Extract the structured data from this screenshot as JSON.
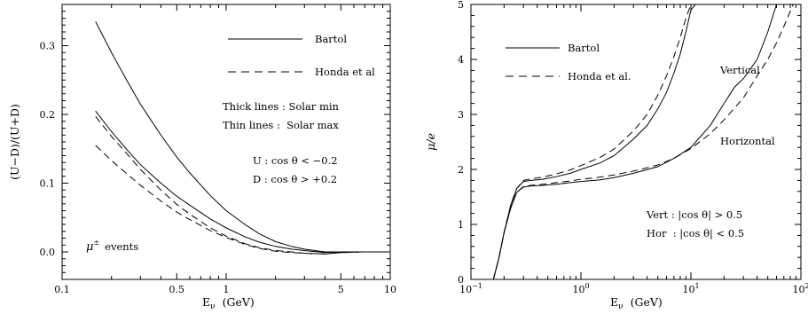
{
  "left_panel": {
    "xlabel": "E",
    "xlabel_sub": "ν",
    "xlabel_unit": "(GeV)",
    "ylabel": "(U−D)/(U+D)",
    "legend": [
      {
        "label": "Bartol",
        "style": "solid"
      },
      {
        "label": "Honda et al",
        "style": "dashed"
      }
    ],
    "notes": [
      "Thick lines : Solar min",
      "Thin lines :  Solar max"
    ],
    "updown_lines": [
      "U : cos θ < −0.2",
      "D : cos θ > +0.2"
    ],
    "events_label_symbol": "μ",
    "events_label_sup": "±",
    "events_label_text": "events",
    "xticks": [
      {
        "v": 0.1,
        "label": "0.1"
      },
      {
        "v": 0.5,
        "label": "0.5"
      },
      {
        "v": 1,
        "label": "1"
      },
      {
        "v": 5,
        "label": "5"
      },
      {
        "v": 10,
        "label": "10"
      }
    ],
    "yticks": [
      {
        "v": 0.0,
        "label": "0.0"
      },
      {
        "v": 0.1,
        "label": "0.1"
      },
      {
        "v": 0.2,
        "label": "0.2"
      },
      {
        "v": 0.3,
        "label": "0.3"
      }
    ]
  },
  "right_panel": {
    "xlabel": "E",
    "xlabel_sub": "ν",
    "xlabel_unit": "(GeV)",
    "ylabel": "μ/e",
    "legend": [
      {
        "label": "Bartol",
        "style": "solid"
      },
      {
        "label": "Honda et al.",
        "style": "dashed"
      }
    ],
    "curve_labels": [
      "Vertical",
      "Horizontal"
    ],
    "cut_lines": [
      "Vert : |cos θ| > 0.5",
      "Hor  : |cos θ| < 0.5"
    ],
    "xticks": [
      {
        "v": 0.1,
        "base": "10",
        "exp": "−1"
      },
      {
        "v": 1,
        "base": "10",
        "exp": "0"
      },
      {
        "v": 10,
        "base": "10",
        "exp": "1"
      },
      {
        "v": 100,
        "base": "10",
        "exp": "2"
      }
    ],
    "yticks": [
      {
        "v": 0,
        "label": "0"
      },
      {
        "v": 1,
        "label": "1"
      },
      {
        "v": 2,
        "label": "2"
      },
      {
        "v": 3,
        "label": "3"
      },
      {
        "v": 4,
        "label": "4"
      },
      {
        "v": 5,
        "label": "5"
      }
    ]
  },
  "chart_data": [
    {
      "type": "line",
      "xscale": "log",
      "xlim": [
        0.1,
        10
      ],
      "ylim": [
        -0.04,
        0.36
      ],
      "xlabel": "Eν (GeV)",
      "ylabel": "(U−D)/(U+D)",
      "legend_placement": "top-right",
      "series": [
        {
          "name": "Bartol",
          "style": "solid",
          "solar": "min",
          "x": [
            0.16,
            0.2,
            0.25,
            0.3,
            0.4,
            0.5,
            0.6,
            0.8,
            1.0,
            1.3,
            1.6,
            2.0,
            2.5,
            3.0,
            4.0,
            5.0,
            7.0,
            10.0
          ],
          "y": [
            0.335,
            0.29,
            0.248,
            0.215,
            0.17,
            0.138,
            0.115,
            0.082,
            0.06,
            0.04,
            0.026,
            0.015,
            0.008,
            0.004,
            0.0,
            0.0,
            0.0,
            0.0
          ]
        },
        {
          "name": "Bartol",
          "style": "solid",
          "solar": "max",
          "x": [
            0.16,
            0.2,
            0.25,
            0.3,
            0.4,
            0.5,
            0.6,
            0.8,
            1.0,
            1.3,
            1.6,
            2.0,
            2.5,
            3.0,
            4.0,
            5.0,
            7.0,
            10.0
          ],
          "y": [
            0.205,
            0.175,
            0.148,
            0.127,
            0.1,
            0.081,
            0.068,
            0.048,
            0.035,
            0.022,
            0.014,
            0.008,
            0.004,
            0.002,
            -0.001,
            0.0,
            0.0,
            0.0
          ]
        },
        {
          "name": "Honda et al",
          "style": "dashed",
          "solar": "min",
          "x": [
            0.16,
            0.2,
            0.25,
            0.3,
            0.4,
            0.5,
            0.6,
            0.8,
            1.0,
            1.3,
            1.6,
            2.0,
            2.5,
            3.0,
            4.0,
            5.0,
            7.0,
            10.0
          ],
          "y": [
            0.197,
            0.168,
            0.142,
            0.12,
            0.09,
            0.069,
            0.055,
            0.035,
            0.023,
            0.012,
            0.006,
            0.002,
            0.0,
            -0.002,
            -0.003,
            -0.001,
            0.0,
            0.0
          ]
        },
        {
          "name": "Honda et al",
          "style": "dashed",
          "solar": "max",
          "x": [
            0.16,
            0.2,
            0.25,
            0.3,
            0.4,
            0.5,
            0.6,
            0.8,
            1.0,
            1.3,
            1.6,
            2.0,
            2.5,
            3.0,
            4.0,
            5.0,
            7.0,
            10.0
          ],
          "y": [
            0.155,
            0.133,
            0.113,
            0.097,
            0.074,
            0.058,
            0.047,
            0.031,
            0.021,
            0.011,
            0.005,
            0.001,
            -0.001,
            -0.002,
            -0.003,
            -0.001,
            0.0,
            0.0
          ]
        }
      ]
    },
    {
      "type": "line",
      "xscale": "log",
      "xlim": [
        0.1,
        100
      ],
      "ylim": [
        0,
        5
      ],
      "xlabel": "Eν (GeV)",
      "ylabel": "μ/e",
      "legend_placement": "top-left",
      "series": [
        {
          "name": "Bartol",
          "style": "solid",
          "direction": "Vertical",
          "x": [
            0.16,
            0.18,
            0.2,
            0.23,
            0.26,
            0.3,
            0.35,
            0.45,
            0.6,
            0.8,
            1.0,
            1.5,
            2.0,
            3.0,
            4.0,
            5.0,
            6.0,
            7.0,
            8.0,
            9.0,
            10.0,
            11.0
          ],
          "y": [
            0.0,
            0.4,
            0.85,
            1.35,
            1.65,
            1.78,
            1.8,
            1.82,
            1.87,
            1.93,
            2.0,
            2.12,
            2.25,
            2.55,
            2.8,
            3.1,
            3.4,
            3.75,
            4.1,
            4.5,
            4.9,
            5.0
          ]
        },
        {
          "name": "Honda et al.",
          "style": "dashed",
          "direction": "Vertical",
          "x": [
            0.16,
            0.18,
            0.2,
            0.23,
            0.26,
            0.3,
            0.35,
            0.45,
            0.6,
            0.8,
            1.0,
            1.5,
            2.0,
            3.0,
            4.0,
            5.0,
            6.0,
            7.0,
            8.0,
            9.0,
            10.0
          ],
          "y": [
            0.0,
            0.4,
            0.85,
            1.35,
            1.65,
            1.8,
            1.83,
            1.86,
            1.92,
            1.99,
            2.07,
            2.22,
            2.37,
            2.7,
            3.0,
            3.35,
            3.7,
            4.05,
            4.4,
            4.75,
            5.0
          ]
        },
        {
          "name": "Bartol",
          "style": "solid",
          "direction": "Horizontal",
          "x": [
            0.16,
            0.18,
            0.2,
            0.23,
            0.26,
            0.3,
            0.35,
            0.45,
            0.6,
            0.8,
            1.0,
            1.5,
            2.0,
            3.0,
            5.0,
            7.0,
            10.0,
            15.0,
            20.0,
            25.0,
            30.0,
            40.0,
            50.0,
            60.0
          ],
          "y": [
            0.0,
            0.4,
            0.85,
            1.3,
            1.58,
            1.68,
            1.7,
            1.71,
            1.73,
            1.76,
            1.78,
            1.81,
            1.85,
            1.93,
            2.05,
            2.2,
            2.4,
            2.8,
            3.2,
            3.5,
            3.65,
            4.0,
            4.5,
            5.0
          ]
        },
        {
          "name": "Honda et al.",
          "style": "dashed",
          "direction": "Horizontal",
          "x": [
            0.16,
            0.18,
            0.2,
            0.23,
            0.26,
            0.3,
            0.35,
            0.45,
            0.6,
            0.8,
            1.0,
            1.5,
            2.0,
            3.0,
            5.0,
            7.0,
            10.0,
            15.0,
            20.0,
            30.0,
            40.0,
            50.0,
            60.0,
            70.0,
            85.0
          ],
          "y": [
            0.0,
            0.4,
            0.85,
            1.3,
            1.58,
            1.69,
            1.71,
            1.73,
            1.76,
            1.79,
            1.82,
            1.86,
            1.9,
            1.97,
            2.08,
            2.2,
            2.38,
            2.65,
            2.9,
            3.3,
            3.7,
            4.0,
            4.3,
            4.6,
            5.0
          ]
        }
      ]
    }
  ]
}
